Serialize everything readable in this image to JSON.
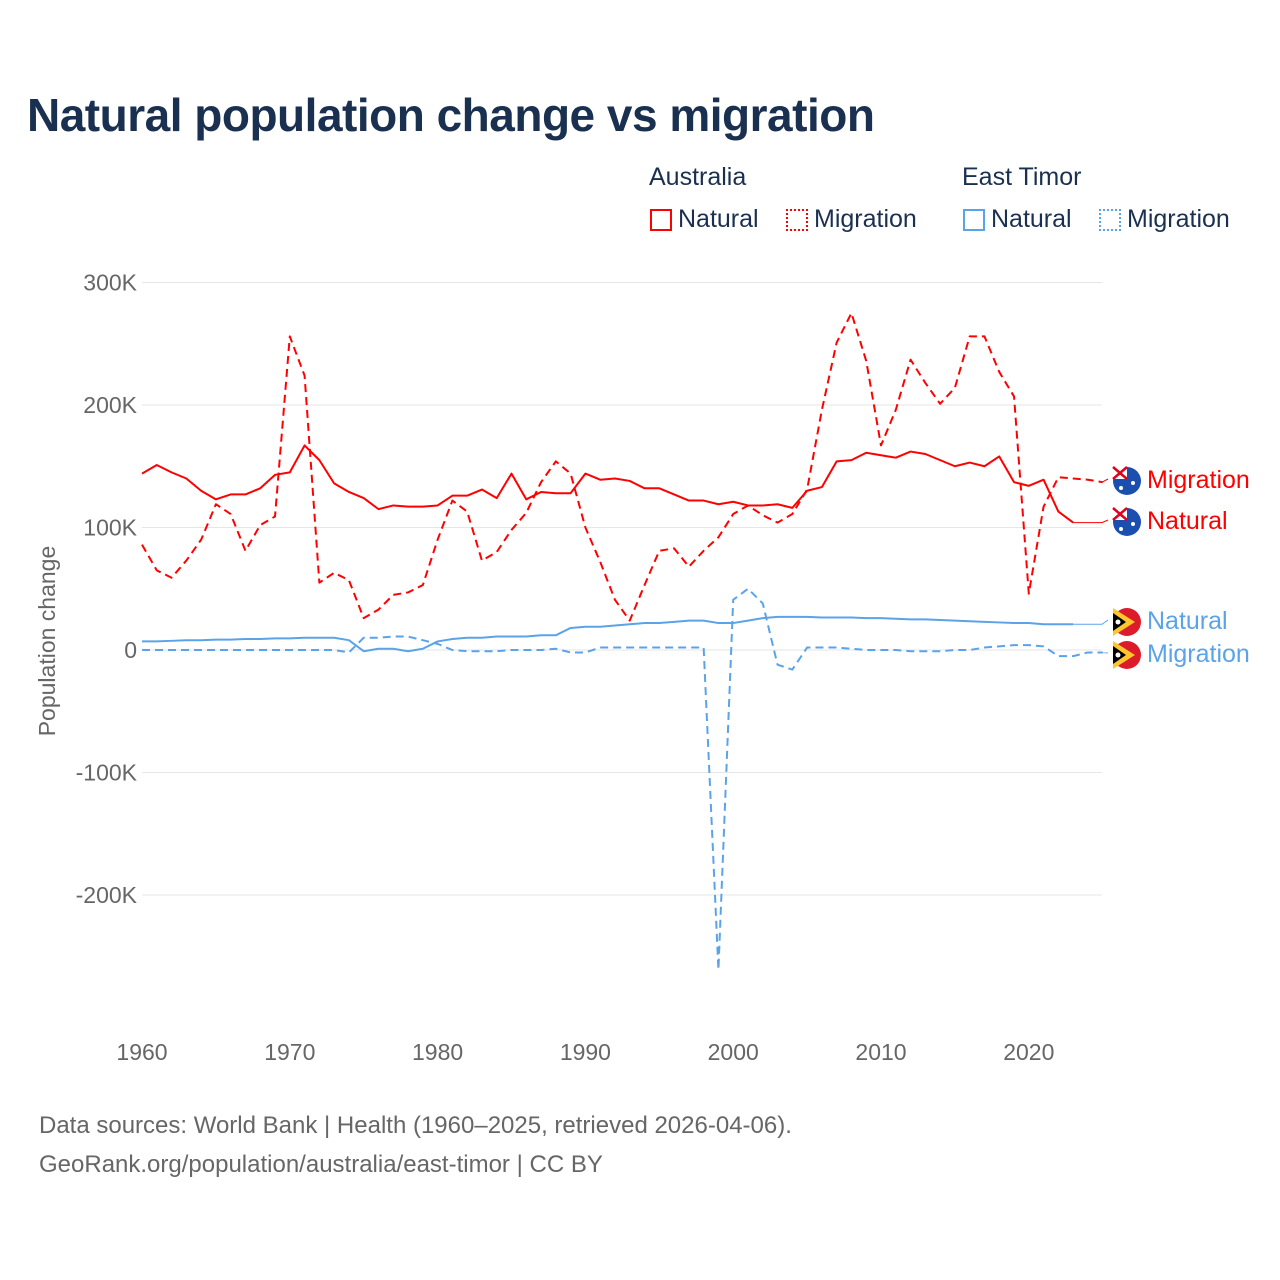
{
  "title": "Natural population change vs migration",
  "legend": {
    "groups": [
      {
        "name": "Australia",
        "items": [
          "Natural",
          "Migration"
        ],
        "color": "#ff0000"
      },
      {
        "name": "East Timor",
        "items": [
          "Natural",
          "Migration"
        ],
        "color": "#5ba3e8"
      }
    ]
  },
  "footer": {
    "line1": "Data sources: World Bank | Health (1960–2025, retrieved 2026-04-06).",
    "line2": "GeoRank.org/population/australia/east-timor | CC BY"
  },
  "chart_data": {
    "type": "line",
    "title": "Natural population change vs migration",
    "xlabel": "",
    "ylabel": "Population change",
    "xlim": [
      1960,
      2025
    ],
    "ylim": [
      -300000,
      300000
    ],
    "xticks": [
      1960,
      1970,
      1980,
      1990,
      2000,
      2010,
      2020
    ],
    "xtick_labels": [
      "1960",
      "1970",
      "1980",
      "1990",
      "2000",
      "2010",
      "2020"
    ],
    "yticks": [
      300000,
      200000,
      100000,
      0,
      -100000,
      -200000
    ],
    "ytick_labels": [
      "300K",
      "200K",
      "100K",
      "0",
      "-100K",
      "-200K"
    ],
    "grid": true,
    "series": [
      {
        "name": "Australia Natural",
        "label": "Natural",
        "country": "Australia",
        "style": "solid",
        "color": "#ff0000",
        "start": 1960,
        "values": [
          144,
          151,
          145,
          140,
          130,
          123,
          127,
          127,
          132,
          143,
          145,
          167,
          155,
          136,
          129,
          124,
          115,
          118,
          117,
          117,
          118,
          126,
          126,
          131,
          124,
          144,
          123,
          129,
          128,
          128,
          144,
          139,
          140,
          138,
          132,
          132,
          127,
          122,
          122,
          119,
          121,
          118,
          118,
          119,
          116,
          130,
          133,
          154,
          155,
          161,
          159,
          157,
          162,
          160,
          155,
          150,
          153,
          150,
          158,
          137,
          134,
          139,
          113,
          104
        ]
      },
      {
        "name": "Australia Migration",
        "label": "Migration",
        "country": "Australia",
        "style": "dashed",
        "color": "#ff0000",
        "start": 1960,
        "values": [
          86,
          65,
          59,
          73,
          90,
          119,
          111,
          81,
          102,
          109,
          256,
          224,
          55,
          63,
          57,
          26,
          33,
          45,
          47,
          53,
          90,
          122,
          113,
          73,
          80,
          98,
          112,
          137,
          154,
          144,
          100,
          72,
          41,
          24,
          53,
          81,
          83,
          68,
          81,
          92,
          111,
          118,
          110,
          104,
          111,
          131,
          196,
          251,
          275,
          236,
          167,
          196,
          237,
          218,
          201,
          214,
          256,
          256,
          227,
          207,
          46,
          117,
          141,
          140,
          139,
          137
        ]
      },
      {
        "name": "East Timor Natural",
        "label": "Natural",
        "country": "East Timor",
        "style": "solid",
        "color": "#5ba3e8",
        "start": 1960,
        "values": [
          7,
          7,
          7.5,
          8,
          8,
          8.5,
          8.5,
          9,
          9,
          9.5,
          9.5,
          10,
          10,
          10,
          8,
          -1,
          1,
          1,
          -1,
          1,
          7,
          9,
          10,
          10,
          11,
          11,
          11,
          12,
          12,
          18,
          19,
          19,
          20,
          21,
          22,
          22,
          23,
          24,
          24,
          22,
          22,
          24,
          26,
          27,
          27,
          27,
          26.5,
          26.5,
          26.5,
          26,
          26,
          25.5,
          25,
          25,
          24.5,
          24,
          23.5,
          23,
          22.5,
          22,
          22,
          21,
          21,
          21
        ]
      },
      {
        "name": "East Timor Migration",
        "label": "Migration",
        "country": "East Timor",
        "style": "dashed",
        "color": "#5ba3e8",
        "start": 1960,
        "values": [
          0,
          0,
          0,
          0,
          0,
          0,
          0,
          0,
          0,
          0,
          0,
          0,
          0,
          0,
          -2,
          10,
          10,
          11,
          11,
          8,
          5,
          0,
          -1,
          -1,
          -1,
          0,
          0,
          0,
          1,
          -2,
          -2,
          2,
          2,
          2,
          2,
          2,
          2,
          2,
          2,
          -261,
          41,
          50,
          38,
          -12,
          -16,
          2,
          2,
          2,
          1,
          0,
          0,
          0,
          -1,
          -1,
          -1,
          0,
          0,
          2,
          3,
          4,
          4,
          3,
          -5,
          -5,
          -2,
          -2
        ]
      }
    ],
    "value_units": "thousands"
  }
}
